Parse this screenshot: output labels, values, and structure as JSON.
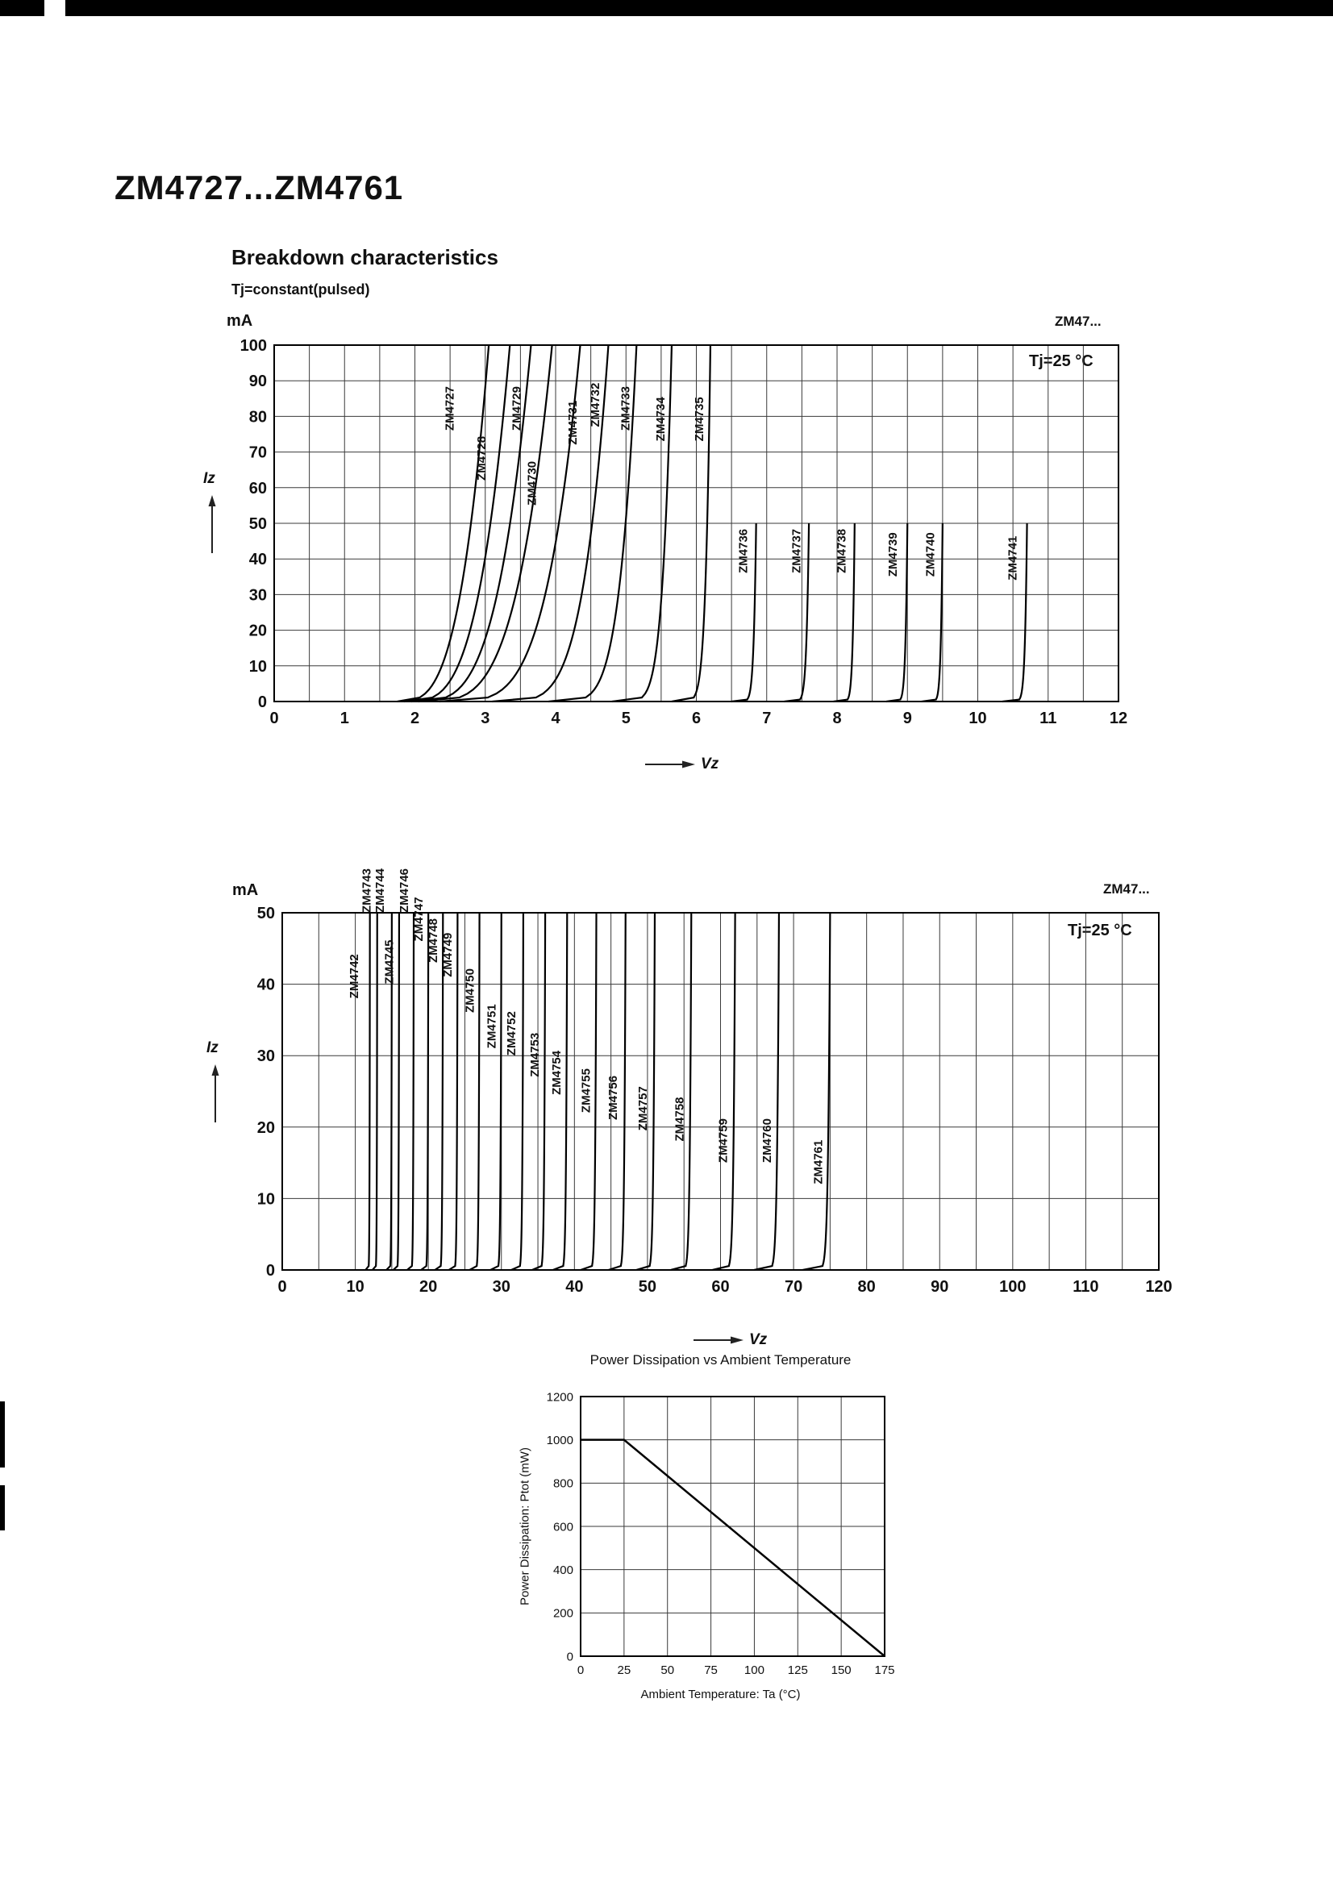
{
  "page": {
    "title": "ZM4727...ZM4761"
  },
  "section": {
    "heading": "Breakdown characteristics",
    "subheading": "Tj=constant(pulsed)"
  },
  "chart_data": [
    {
      "id": "breakdown-low-voltage",
      "type": "line",
      "corner_label": "ZM47...",
      "condition_label": "Tj=25 °C",
      "y_unit_label": "mA",
      "ylabel": "Iz",
      "xlabel": "Vz",
      "xlim": [
        0,
        12
      ],
      "ylim": [
        0,
        100
      ],
      "x_tick_step": 1,
      "y_tick_step": 10,
      "x_grid_step": 0.5,
      "y_grid_step": 10,
      "tick_font": 20,
      "tick_weight": 700,
      "grid": true,
      "legend": "curve labels rotated along each trace",
      "series": [
        {
          "name": "ZM4727",
          "vz": 3.05,
          "v_start": 1.75,
          "sharpness": 3.2,
          "imax": 100,
          "label_x": 2.55,
          "label_y": 76
        },
        {
          "name": "ZM4728",
          "vz": 3.35,
          "v_start": 1.85,
          "sharpness": 3.4,
          "imax": 100,
          "label_x": 3.0,
          "label_y": 62
        },
        {
          "name": "ZM4729",
          "vz": 3.65,
          "v_start": 1.95,
          "sharpness": 3.6,
          "imax": 100,
          "label_x": 3.5,
          "label_y": 76
        },
        {
          "name": "ZM4730",
          "vz": 3.95,
          "v_start": 2.05,
          "sharpness": 3.8,
          "imax": 100,
          "label_x": 3.72,
          "label_y": 55
        },
        {
          "name": "ZM4731",
          "vz": 4.35,
          "v_start": 2.35,
          "sharpness": 4.2,
          "imax": 100,
          "label_x": 4.3,
          "label_y": 72
        },
        {
          "name": "ZM4732",
          "vz": 4.75,
          "v_start": 3.1,
          "sharpness": 4.6,
          "imax": 100,
          "label_x": 4.62,
          "label_y": 77
        },
        {
          "name": "ZM4733",
          "vz": 5.15,
          "v_start": 3.9,
          "sharpness": 5.2,
          "imax": 100,
          "label_x": 5.05,
          "label_y": 76
        },
        {
          "name": "ZM4734",
          "vz": 5.65,
          "v_start": 4.8,
          "sharpness": 6.5,
          "imax": 100,
          "label_x": 5.55,
          "label_y": 73
        },
        {
          "name": "ZM4735",
          "vz": 6.2,
          "v_start": 5.65,
          "sharpness": 8,
          "imax": 100,
          "label_x": 6.1,
          "label_y": 73
        },
        {
          "name": "ZM4736",
          "vz": 6.85,
          "v_start": 6.5,
          "sharpness": 10,
          "imax": 50,
          "label_x": 6.72,
          "label_y": 36
        },
        {
          "name": "ZM4737",
          "vz": 7.6,
          "v_start": 7.25,
          "sharpness": 10,
          "imax": 50,
          "label_x": 7.48,
          "label_y": 36
        },
        {
          "name": "ZM4738",
          "vz": 8.25,
          "v_start": 7.95,
          "sharpness": 11,
          "imax": 50,
          "label_x": 8.12,
          "label_y": 36
        },
        {
          "name": "ZM4739",
          "vz": 9.0,
          "v_start": 8.7,
          "sharpness": 11,
          "imax": 50,
          "label_x": 8.85,
          "label_y": 35
        },
        {
          "name": "ZM4740",
          "vz": 9.5,
          "v_start": 9.2,
          "sharpness": 12,
          "imax": 50,
          "label_x": 9.38,
          "label_y": 35
        },
        {
          "name": "ZM4741",
          "vz": 10.7,
          "v_start": 10.35,
          "sharpness": 12,
          "imax": 50,
          "label_x": 10.55,
          "label_y": 34
        }
      ]
    },
    {
      "id": "breakdown-high-voltage",
      "type": "line",
      "corner_label": "ZM47...",
      "condition_label": "Tj=25 °C",
      "y_unit_label": "mA",
      "ylabel": "Iz",
      "xlabel": "Vz",
      "xlim": [
        0,
        120
      ],
      "ylim": [
        0,
        50
      ],
      "x_tick_step": 10,
      "y_tick_step": 10,
      "x_grid_step": 5,
      "y_grid_step": 10,
      "tick_font": 20,
      "tick_weight": 700,
      "grid": true,
      "series": [
        {
          "name": "ZM4742",
          "vz": 12,
          "imax": 50,
          "label_x": 10.4,
          "label_y": 38
        },
        {
          "name": "ZM4743",
          "vz": 13,
          "imax": 50,
          "label_x": 12.1,
          "label_y": 50
        },
        {
          "name": "ZM4744",
          "vz": 15,
          "imax": 50,
          "label_x": 13.9,
          "label_y": 50
        },
        {
          "name": "ZM4745",
          "vz": 16,
          "imax": 50,
          "label_x": 15.2,
          "label_y": 40
        },
        {
          "name": "ZM4746",
          "vz": 18,
          "imax": 50,
          "label_x": 17.2,
          "label_y": 50
        },
        {
          "name": "ZM4747",
          "vz": 20,
          "imax": 50,
          "label_x": 19.2,
          "label_y": 46
        },
        {
          "name": "ZM4748",
          "vz": 22,
          "imax": 50,
          "label_x": 21.2,
          "label_y": 43
        },
        {
          "name": "ZM4749",
          "vz": 24,
          "imax": 50,
          "label_x": 23.2,
          "label_y": 41
        },
        {
          "name": "ZM4750",
          "vz": 27,
          "imax": 50,
          "label_x": 26.2,
          "label_y": 36
        },
        {
          "name": "ZM4751",
          "vz": 30,
          "imax": 50,
          "label_x": 29.2,
          "label_y": 31
        },
        {
          "name": "ZM4752",
          "vz": 33,
          "imax": 50,
          "label_x": 31.9,
          "label_y": 30
        },
        {
          "name": "ZM4753",
          "vz": 36,
          "imax": 50,
          "label_x": 35.1,
          "label_y": 27
        },
        {
          "name": "ZM4754",
          "vz": 39,
          "imax": 50,
          "label_x": 38.1,
          "label_y": 24.5
        },
        {
          "name": "ZM4755",
          "vz": 43,
          "imax": 50,
          "label_x": 42.1,
          "label_y": 22
        },
        {
          "name": "ZM4756",
          "vz": 47,
          "imax": 50,
          "label_x": 45.8,
          "label_y": 21
        },
        {
          "name": "ZM4757",
          "vz": 51,
          "imax": 50,
          "label_x": 49.9,
          "label_y": 19.5
        },
        {
          "name": "ZM4758",
          "vz": 56,
          "imax": 50,
          "label_x": 54.9,
          "label_y": 18
        },
        {
          "name": "ZM4759",
          "vz": 62,
          "imax": 50,
          "label_x": 60.9,
          "label_y": 15
        },
        {
          "name": "ZM4760",
          "vz": 68,
          "imax": 50,
          "label_x": 66.9,
          "label_y": 15
        },
        {
          "name": "ZM4761",
          "vz": 75,
          "imax": 50,
          "label_x": 73.9,
          "label_y": 12
        }
      ]
    },
    {
      "id": "power-derating",
      "type": "line",
      "title": "Power Dissipation vs Ambient Temperature",
      "xlabel": "Ambient Temperature: Ta (°C)",
      "ylabel": "Power Dissipation: Ptot (mW)",
      "xlim": [
        0,
        175
      ],
      "ylim": [
        0,
        1200
      ],
      "x_tick_step": 25,
      "y_tick_step": 200,
      "x_grid_step": 25,
      "y_grid_step": 200,
      "tick_font": 15,
      "tick_weight": 400,
      "grid": true,
      "points": [
        [
          0,
          1000
        ],
        [
          25,
          1000
        ],
        [
          175,
          0
        ]
      ]
    }
  ]
}
